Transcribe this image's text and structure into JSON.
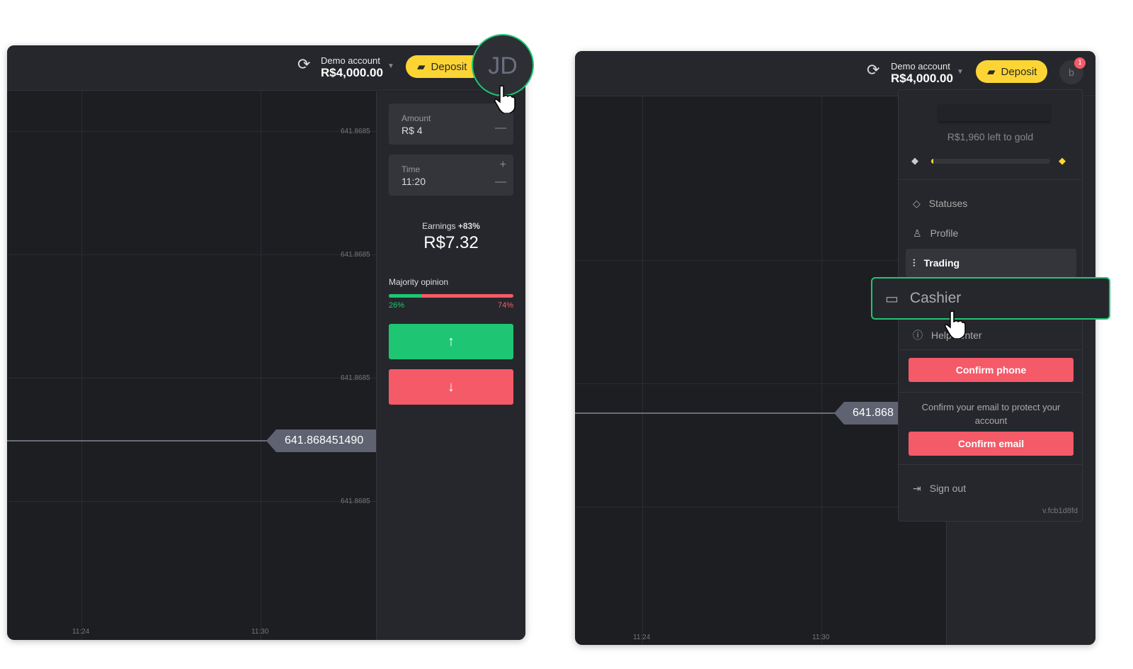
{
  "left": {
    "account_label": "Demo account",
    "balance": "R$4,000.00",
    "deposit": "Deposit",
    "avatar": "JD",
    "y_ticks": [
      "641.8685",
      "641.8685",
      "641.8685",
      "641.8685"
    ],
    "x_ticks": [
      "11:24",
      "11:30"
    ],
    "price": "641.868451490",
    "amount_label": "Amount",
    "amount_value": "R$ 4",
    "time_label": "Time",
    "time_value": "11:20",
    "earnings_label": "Earnings",
    "earnings_pct": "+83%",
    "earnings_value": "R$7.32",
    "majority_label": "Majority opinion",
    "up_pct": "26%",
    "down_pct": "74%",
    "up_fraction": 0.26,
    "colors": {
      "up": "#1ec673",
      "down": "#f55a68",
      "deposit": "#fcd535",
      "highlight": "#1ec673"
    }
  },
  "right": {
    "account_label": "Demo account",
    "balance": "R$4,000.00",
    "deposit": "Deposit",
    "avatar": "b",
    "notification_count": "1",
    "x_ticks": [
      "11:24",
      "11:30"
    ],
    "price": "641.868",
    "gold_text": "R$1,960 left to gold",
    "gold_progress": 0.01,
    "menu": [
      {
        "label": "Statuses",
        "icon": "diamond-icon"
      },
      {
        "label": "Profile",
        "icon": "user-icon"
      },
      {
        "label": "Trading",
        "icon": "chart-icon"
      },
      {
        "label": "Cashier",
        "icon": "wallet-icon"
      },
      {
        "label": "Help center",
        "icon": "info-icon"
      }
    ],
    "confirm_phone": "Confirm phone",
    "email_text": "Confirm your email to protect your account",
    "confirm_email": "Confirm email",
    "sign_out": "Sign out",
    "version": "v.fcb1d8fd"
  }
}
